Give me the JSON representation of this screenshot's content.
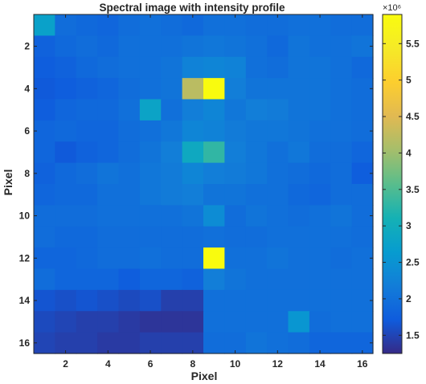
{
  "chart_data": {
    "type": "heatmap",
    "title": "Spectral image with intensity profile",
    "xlabel": "Pixel",
    "ylabel": "Pixel",
    "x_range": [
      1,
      16
    ],
    "y_range": [
      1,
      16
    ],
    "x_ticks": [
      2,
      4,
      6,
      8,
      10,
      12,
      14,
      16
    ],
    "y_ticks": [
      2,
      4,
      6,
      8,
      10,
      12,
      14,
      16
    ],
    "y_direction": "reverse",
    "colormap": "parula",
    "colorbar": {
      "placement": "right",
      "multiplier_label": "×10⁶",
      "clim": [
        1.25,
        5.9
      ],
      "ticks": [
        1.5,
        2,
        2.5,
        3,
        3.5,
        4,
        4.5,
        5,
        5.5
      ],
      "tick_labels": [
        "1.5",
        "2",
        "2.5",
        "3",
        "3.5",
        "4",
        "4.5",
        "5",
        "5.5"
      ]
    },
    "values_unit_multiplier": 1000000,
    "values": [
      [
        2.75,
        1.95,
        1.9,
        1.85,
        1.95,
        2.0,
        1.95,
        1.9,
        2.0,
        2.0,
        1.95,
        1.95,
        2.0,
        2.0,
        1.95,
        1.95
      ],
      [
        1.8,
        1.9,
        1.95,
        1.9,
        2.0,
        2.0,
        2.0,
        2.05,
        2.1,
        2.05,
        2.0,
        1.9,
        2.05,
        2.0,
        2.0,
        2.05
      ],
      [
        1.75,
        1.8,
        1.9,
        1.95,
        2.0,
        2.0,
        2.05,
        2.25,
        2.3,
        2.25,
        2.0,
        1.95,
        2.05,
        2.05,
        2.0,
        1.9
      ],
      [
        1.7,
        1.75,
        1.8,
        1.85,
        1.95,
        2.0,
        2.05,
        4.2,
        5.9,
        2.2,
        2.05,
        2.05,
        2.05,
        2.05,
        2.0,
        1.95
      ],
      [
        1.75,
        1.85,
        1.9,
        1.9,
        2.0,
        2.8,
        2.0,
        2.2,
        2.3,
        2.1,
        2.2,
        2.15,
        2.05,
        2.05,
        2.0,
        1.95
      ],
      [
        1.85,
        1.9,
        1.85,
        1.85,
        1.95,
        2.0,
        2.1,
        2.3,
        2.25,
        2.15,
        2.1,
        2.1,
        2.05,
        2.0,
        2.0,
        1.95
      ],
      [
        1.85,
        1.7,
        1.8,
        1.85,
        1.95,
        2.05,
        2.2,
        2.9,
        3.3,
        2.2,
        2.1,
        2.0,
        2.1,
        1.95,
        1.95,
        1.85
      ],
      [
        1.8,
        1.9,
        1.95,
        2.05,
        2.0,
        2.1,
        2.15,
        2.3,
        2.2,
        2.15,
        2.1,
        2.0,
        1.95,
        1.9,
        1.95,
        1.75
      ],
      [
        1.85,
        1.9,
        1.9,
        2.0,
        2.0,
        2.1,
        2.15,
        2.2,
        2.05,
        2.05,
        2.0,
        2.0,
        1.9,
        1.85,
        1.95,
        1.95
      ],
      [
        1.95,
        1.95,
        1.95,
        2.0,
        2.0,
        2.0,
        2.0,
        2.05,
        2.4,
        1.95,
        2.05,
        2.0,
        1.95,
        2.0,
        2.05,
        1.95
      ],
      [
        1.95,
        1.9,
        1.9,
        1.95,
        1.95,
        1.95,
        1.95,
        1.95,
        2.0,
        1.95,
        1.95,
        2.0,
        2.0,
        2.0,
        2.0,
        1.95
      ],
      [
        1.85,
        1.85,
        1.9,
        1.95,
        1.95,
        2.0,
        1.95,
        1.95,
        5.9,
        2.0,
        2.0,
        2.05,
        2.0,
        2.0,
        1.95,
        2.0
      ],
      [
        1.95,
        1.85,
        1.85,
        1.85,
        1.75,
        1.85,
        1.85,
        1.8,
        2.2,
        2.05,
        2.0,
        2.0,
        2.0,
        2.0,
        2.0,
        2.0
      ],
      [
        1.65,
        1.6,
        1.65,
        1.6,
        1.55,
        1.6,
        1.45,
        1.45,
        2.0,
        2.0,
        2.0,
        2.0,
        2.0,
        2.0,
        2.0,
        2.0
      ],
      [
        1.55,
        1.5,
        1.45,
        1.45,
        1.4,
        1.35,
        1.35,
        1.35,
        2.0,
        2.0,
        2.0,
        2.0,
        2.55,
        1.95,
        2.0,
        2.0
      ],
      [
        1.5,
        1.45,
        1.45,
        1.4,
        1.4,
        1.45,
        1.45,
        1.45,
        1.95,
        1.95,
        2.05,
        2.0,
        1.95,
        1.85,
        1.85,
        1.85
      ]
    ]
  }
}
